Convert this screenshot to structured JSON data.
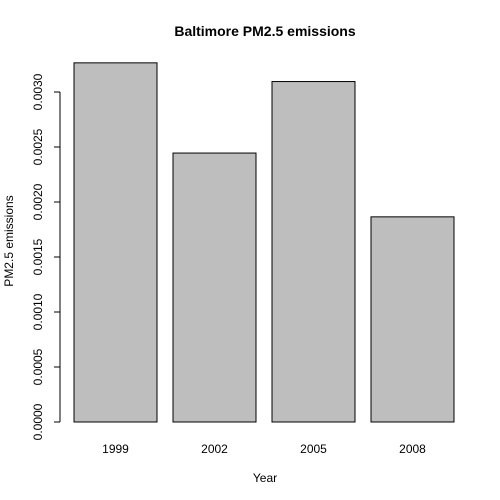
{
  "chart_data": {
    "type": "bar",
    "title": "Baltimore PM2.5 emissions",
    "xlabel": "Year",
    "ylabel": "PM2.5 emissions",
    "categories": [
      "1999",
      "2002",
      "2005",
      "2008"
    ],
    "values": [
      0.003265,
      0.002445,
      0.003095,
      0.001865
    ],
    "ylim": [
      0,
      0.0033
    ],
    "yticks": [
      0.0,
      0.0005,
      0.001,
      0.0015,
      0.002,
      0.0025,
      0.003
    ],
    "ytick_labels": [
      "0.0000",
      "0.0005",
      "0.0010",
      "0.0015",
      "0.0020",
      "0.0025",
      "0.0030"
    ],
    "bar_color": "#bebebe",
    "grid": false,
    "legend": "none"
  }
}
